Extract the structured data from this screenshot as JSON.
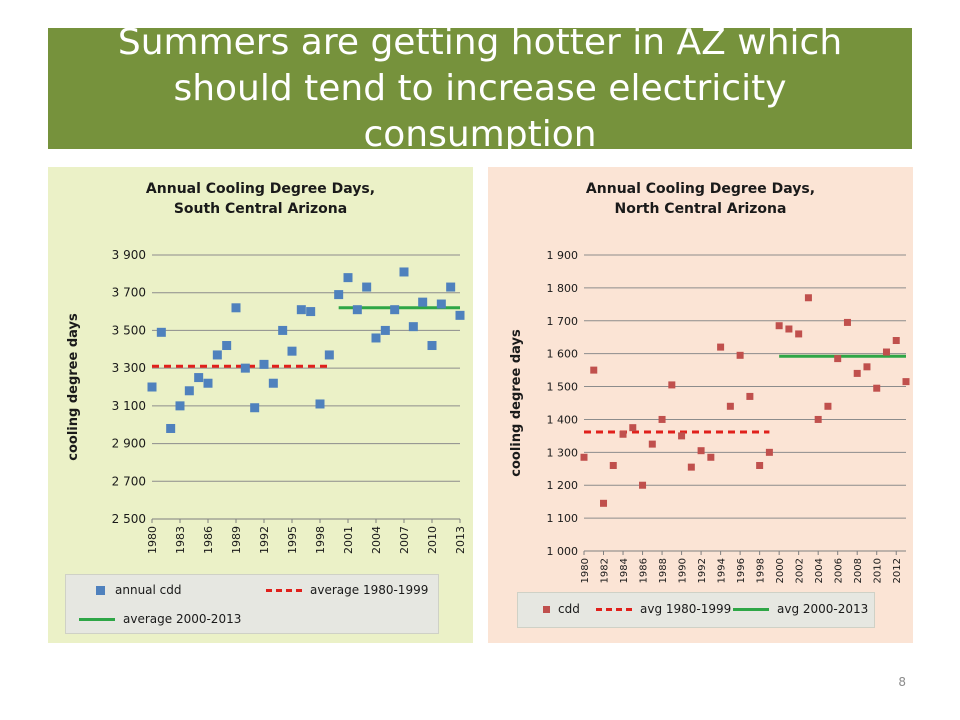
{
  "slide": {
    "title": "Summers are getting hotter in AZ which should tend to increase electricity consumption",
    "page_number": "8",
    "colors": {
      "title_bar": "#76923c",
      "south_panel": "#ebf1c7",
      "north_panel": "#fbe4d5"
    }
  },
  "chart_data": [
    {
      "type": "scatter",
      "title": "Annual Cooling Degree Days, South Central Arizona",
      "xlabel": "",
      "ylabel": "cooling degree days",
      "ylim": [
        2500,
        3900
      ],
      "ytick_values": [
        2500,
        2700,
        2900,
        3100,
        3300,
        3500,
        3700,
        3900
      ],
      "ytick_labels": [
        "2 500",
        "2 700",
        "2 900",
        "3 100",
        "3 300",
        "3 500",
        "3 700",
        "3 900"
      ],
      "xlim": [
        1980,
        2013
      ],
      "xtick_labels": [
        "1980",
        "1983",
        "1986",
        "1989",
        "1992",
        "1995",
        "1998",
        "2001",
        "2004",
        "2007",
        "2010",
        "2013"
      ],
      "grid": true,
      "legend_position": "bottom",
      "series": [
        {
          "name": "annual cdd",
          "marker": "square",
          "color": "#4f81bd",
          "x": [
            1980,
            1981,
            1982,
            1983,
            1984,
            1985,
            1986,
            1987,
            1988,
            1989,
            1990,
            1991,
            1992,
            1993,
            1994,
            1995,
            1996,
            1997,
            1998,
            1999,
            2000,
            2001,
            2002,
            2003,
            2004,
            2005,
            2006,
            2007,
            2008,
            2009,
            2010,
            2011,
            2012,
            2013
          ],
          "y": [
            3200,
            3490,
            2980,
            3100,
            3180,
            3250,
            3220,
            3370,
            3420,
            3620,
            3300,
            3090,
            3320,
            3220,
            3500,
            3390,
            3610,
            3600,
            3110,
            3370,
            3690,
            3780,
            3610,
            3730,
            3460,
            3500,
            3610,
            3810,
            3520,
            3650,
            3420,
            3640,
            3730,
            3580
          ]
        },
        {
          "name": "average 1980-1999",
          "style": "dashed",
          "color": "#e0201b",
          "x": [
            1980,
            1999
          ],
          "y": [
            3310,
            3310
          ]
        },
        {
          "name": "average 2000-2013",
          "style": "solid",
          "color": "#2ea646",
          "x": [
            2000,
            2013
          ],
          "y": [
            3620,
            3620
          ]
        }
      ]
    },
    {
      "type": "scatter",
      "title": "Annual Cooling Degree Days, North Central Arizona",
      "xlabel": "",
      "ylabel": "cooling degree days",
      "ylim": [
        1000,
        1900
      ],
      "ytick_values": [
        1000,
        1100,
        1200,
        1300,
        1400,
        1500,
        1600,
        1700,
        1800,
        1900
      ],
      "ytick_labels": [
        "1 000",
        "1 100",
        "1 200",
        "1 300",
        "1 400",
        "1 500",
        "1 600",
        "1 700",
        "1 800",
        "1 900"
      ],
      "xlim": [
        1980,
        2013
      ],
      "xtick_labels": [
        "1980",
        "1982",
        "1984",
        "1986",
        "1988",
        "1990",
        "1992",
        "1994",
        "1996",
        "1998",
        "2000",
        "2002",
        "2004",
        "2006",
        "2008",
        "2010",
        "2012"
      ],
      "grid": true,
      "legend_position": "bottom",
      "series": [
        {
          "name": "cdd",
          "marker": "square",
          "color": "#c0504d",
          "x": [
            1980,
            1981,
            1982,
            1983,
            1984,
            1985,
            1986,
            1987,
            1988,
            1989,
            1990,
            1991,
            1992,
            1993,
            1994,
            1995,
            1996,
            1997,
            1998,
            1999,
            2000,
            2001,
            2002,
            2003,
            2004,
            2005,
            2006,
            2007,
            2008,
            2009,
            2010,
            2011,
            2012,
            2013
          ],
          "y": [
            1285,
            1550,
            1145,
            1260,
            1355,
            1375,
            1200,
            1325,
            1400,
            1505,
            1350,
            1255,
            1305,
            1285,
            1620,
            1440,
            1595,
            1470,
            1260,
            1300,
            1685,
            1675,
            1660,
            1770,
            1400,
            1440,
            1585,
            1695,
            1540,
            1560,
            1495,
            1605,
            1640,
            1515
          ]
        },
        {
          "name": "avg 1980-1999",
          "style": "dashed",
          "color": "#e0201b",
          "x": [
            1980,
            1999
          ],
          "y": [
            1362,
            1362
          ]
        },
        {
          "name": "avg 2000-2013",
          "style": "solid",
          "color": "#2ea646",
          "x": [
            2000,
            2013
          ],
          "y": [
            1592,
            1592
          ]
        }
      ]
    }
  ]
}
